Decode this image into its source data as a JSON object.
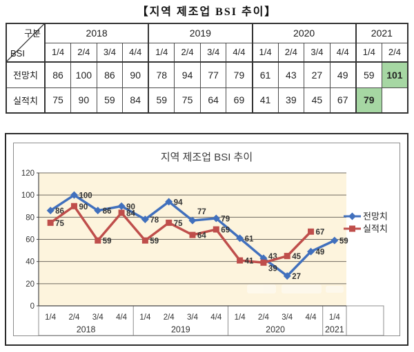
{
  "page_title": "【지역 제조업 BSI 추이】",
  "table": {
    "corner_top": "구분",
    "corner_bottom": "BSI",
    "groups": [
      {
        "year": "2018",
        "quarters": [
          "1/4",
          "2/4",
          "3/4",
          "4/4"
        ]
      },
      {
        "year": "2019",
        "quarters": [
          "1/4",
          "2/4",
          "3/4",
          "4/4"
        ]
      },
      {
        "year": "2020",
        "quarters": [
          "1/4",
          "2/4",
          "3/4",
          "4/4"
        ]
      },
      {
        "year": "2021",
        "quarters": [
          "1/4",
          "2/4"
        ]
      }
    ],
    "rows": [
      {
        "label": "전망치",
        "values": [
          "86",
          "100",
          "86",
          "90",
          "78",
          "94",
          "77",
          "79",
          "61",
          "43",
          "27",
          "49",
          "59",
          "101"
        ],
        "highlights": [
          13
        ]
      },
      {
        "label": "실적치",
        "values": [
          "75",
          "90",
          "59",
          "84",
          "59",
          "75",
          "64",
          "69",
          "41",
          "39",
          "45",
          "67",
          "79",
          ""
        ],
        "highlights": [
          12
        ]
      }
    ],
    "highlight_color": "#a6d7a3"
  },
  "chart_data": {
    "type": "line",
    "title": "지역 제조업 BSI 추이",
    "xlabel": "",
    "ylabel": "",
    "ylim": [
      0,
      120
    ],
    "ytick_step": 20,
    "grid": true,
    "legend_position": "right",
    "plot_bg": "#fdf4dd",
    "gridline_color": "#6f6a60",
    "axis_color": "#454545",
    "box_color": "#8c8c8c",
    "x_groups": [
      {
        "year": "2018",
        "quarters": [
          "1/4",
          "2/4",
          "3/4",
          "4/4"
        ]
      },
      {
        "year": "2019",
        "quarters": [
          "1/4",
          "2/4",
          "3/4",
          "4/4"
        ]
      },
      {
        "year": "2020",
        "quarters": [
          "1/4",
          "2/4",
          "3/4",
          "4/4"
        ]
      },
      {
        "year": "2021",
        "quarters": [
          "1/4"
        ]
      }
    ],
    "series": [
      {
        "name": "전망치",
        "color": "#4170bd",
        "marker": "diamond",
        "values": [
          86,
          100,
          86,
          90,
          78,
          94,
          77,
          79,
          61,
          43,
          27,
          49,
          59
        ],
        "label_offsets": {
          "6": [
            7,
            -9
          ],
          "9": [
            7,
            1
          ]
        }
      },
      {
        "name": "실적치",
        "color": "#bf4e4b",
        "marker": "square",
        "values": [
          75,
          90,
          59,
          84,
          59,
          75,
          64,
          69,
          41,
          39,
          45,
          67
        ],
        "label_offsets": {
          "9": [
            7,
            12
          ]
        }
      }
    ]
  }
}
